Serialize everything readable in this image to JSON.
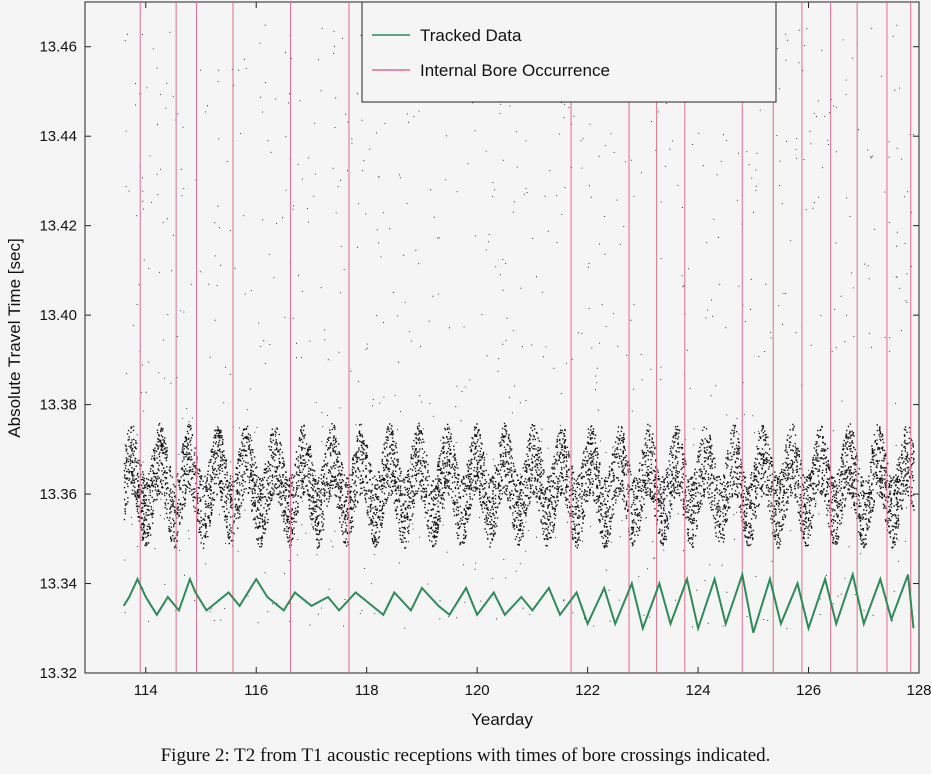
{
  "caption": "Figure 2:  T2 from T1 acoustic receptions with times of bore crossings indicated.",
  "chart_data": {
    "type": "line",
    "title": "",
    "xlabel": "Yearday",
    "ylabel": "Absolute Travel Time [sec]",
    "xlim": [
      112.9,
      128.0
    ],
    "ylim": [
      13.32,
      13.47
    ],
    "xticks": [
      114,
      116,
      118,
      120,
      122,
      124,
      126,
      128
    ],
    "yticks": [
      13.32,
      13.34,
      13.36,
      13.38,
      13.4,
      13.42,
      13.44,
      13.46
    ],
    "grid": false,
    "legend": {
      "placement": "top-center",
      "entries": [
        {
          "label": "Tracked Data",
          "color": "#2e8b57"
        },
        {
          "label": "Internal Bore Occurrence",
          "color": "#e06c8c"
        }
      ]
    },
    "series": [
      {
        "name": "Tracked Data",
        "color": "#2e8b57",
        "x": [
          113.6,
          113.7,
          113.85,
          114.0,
          114.2,
          114.4,
          114.6,
          114.8,
          114.9,
          115.1,
          115.3,
          115.5,
          115.7,
          116.0,
          116.2,
          116.5,
          116.7,
          117.0,
          117.3,
          117.5,
          117.8,
          118.0,
          118.3,
          118.5,
          118.8,
          119.0,
          119.3,
          119.5,
          119.8,
          120.0,
          120.3,
          120.5,
          120.8,
          121.0,
          121.3,
          121.5,
          121.8,
          122.0,
          122.3,
          122.5,
          122.8,
          123.0,
          123.3,
          123.5,
          123.8,
          124.0,
          124.3,
          124.5,
          124.8,
          125.0,
          125.3,
          125.5,
          125.8,
          126.0,
          126.3,
          126.5,
          126.8,
          127.0,
          127.3,
          127.5,
          127.8,
          127.9
        ],
        "y": [
          13.335,
          13.337,
          13.341,
          13.337,
          13.333,
          13.337,
          13.334,
          13.341,
          13.338,
          13.334,
          13.336,
          13.338,
          13.335,
          13.341,
          13.337,
          13.334,
          13.338,
          13.335,
          13.337,
          13.334,
          13.338,
          13.336,
          13.333,
          13.338,
          13.334,
          13.339,
          13.335,
          13.333,
          13.339,
          13.333,
          13.338,
          13.333,
          13.337,
          13.334,
          13.339,
          13.333,
          13.338,
          13.331,
          13.339,
          13.331,
          13.34,
          13.33,
          13.34,
          13.331,
          13.341,
          13.33,
          13.341,
          13.331,
          13.342,
          13.329,
          13.341,
          13.331,
          13.34,
          13.33,
          13.341,
          13.331,
          13.342,
          13.331,
          13.341,
          13.332,
          13.342,
          13.33
        ]
      }
    ],
    "bore_occurrences": [
      113.9,
      114.55,
      114.92,
      115.58,
      116.62,
      117.68,
      121.7,
      122.75,
      123.25,
      123.76,
      124.8,
      125.36,
      125.88,
      126.4,
      126.88,
      127.42,
      127.85
    ]
  }
}
